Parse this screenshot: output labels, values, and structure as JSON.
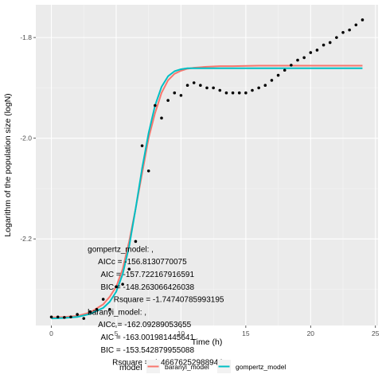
{
  "chart_data": {
    "type": "line",
    "title": "",
    "xlabel": "Time (h)",
    "ylabel": "Logarithm of the population size (logN)",
    "xlim": [
      -1.2,
      25.2
    ],
    "ylim": [
      -2.372,
      -1.735
    ],
    "x_ticks": [
      0,
      5,
      10,
      15,
      20,
      25
    ],
    "y_ticks": [
      -2.2,
      -2.0,
      -1.8
    ],
    "grid": true,
    "panel_background": "#ebebeb",
    "points": {
      "name": "observed",
      "color": "#000000",
      "x": [
        0,
        0.5,
        1,
        1.5,
        2,
        2.5,
        3,
        3.5,
        4,
        4.5,
        5,
        5.5,
        6,
        6.5,
        7,
        7.5,
        8,
        8.5,
        9,
        9.5,
        10,
        10.5,
        11,
        11.5,
        12,
        12.5,
        13,
        13.5,
        14,
        14.5,
        15,
        15.5,
        16,
        16.5,
        17,
        17.5,
        18,
        18.5,
        19,
        19.5,
        20,
        20.5,
        21,
        21.5,
        22,
        22.5,
        23,
        23.5,
        24
      ],
      "y": [
        -2.355,
        -2.355,
        -2.356,
        -2.355,
        -2.35,
        -2.358,
        -2.345,
        -2.34,
        -2.32,
        -2.34,
        -2.295,
        -2.29,
        -2.26,
        -2.205,
        -2.015,
        -2.065,
        -1.935,
        -1.96,
        -1.925,
        -1.91,
        -1.915,
        -1.895,
        -1.89,
        -1.895,
        -1.9,
        -1.9,
        -1.905,
        -1.91,
        -1.91,
        -1.91,
        -1.91,
        -1.905,
        -1.9,
        -1.895,
        -1.885,
        -1.875,
        -1.865,
        -1.855,
        -1.845,
        -1.84,
        -1.83,
        -1.825,
        -1.815,
        -1.81,
        -1.8,
        -1.79,
        -1.785,
        -1.775,
        -1.765
      ]
    },
    "series": [
      {
        "name": "baranyi_model",
        "color": "#f8766d",
        "x": [
          0,
          1,
          2,
          3,
          4,
          4.5,
          5,
          5.5,
          6,
          6.5,
          7,
          7.5,
          8,
          8.5,
          9,
          9.5,
          10,
          10.5,
          11,
          12,
          13,
          14,
          16,
          18,
          20,
          22,
          24
        ],
        "y": [
          -2.356,
          -2.355,
          -2.353,
          -2.346,
          -2.33,
          -2.315,
          -2.295,
          -2.26,
          -2.205,
          -2.14,
          -2.07,
          -2.0,
          -1.95,
          -1.91,
          -1.885,
          -1.872,
          -1.866,
          -1.862,
          -1.86,
          -1.858,
          -1.857,
          -1.857,
          -1.856,
          -1.856,
          -1.856,
          -1.856,
          -1.856
        ]
      },
      {
        "name": "gompertz_model",
        "color": "#00bfc4",
        "x": [
          0,
          1,
          2,
          3,
          4,
          4.5,
          5,
          5.5,
          6,
          6.5,
          7,
          7.5,
          8,
          8.5,
          9,
          9.5,
          10,
          10.5,
          11,
          12,
          13,
          14,
          16,
          18,
          20,
          22,
          24
        ],
        "y": [
          -2.358,
          -2.357,
          -2.355,
          -2.349,
          -2.337,
          -2.325,
          -2.305,
          -2.27,
          -2.215,
          -2.14,
          -2.06,
          -1.99,
          -1.935,
          -1.898,
          -1.877,
          -1.867,
          -1.863,
          -1.861,
          -1.861,
          -1.861,
          -1.861,
          -1.861,
          -1.861,
          -1.861,
          -1.861,
          -1.861,
          -1.861
        ]
      }
    ],
    "annotations": [
      {
        "text": "gompertz_model: ,",
        "x": 2.8,
        "y": -2.22,
        "anchor": "start"
      },
      {
        "text": "AICc = -156.8130770075",
        "x": 3.6,
        "y": -2.245,
        "anchor": "start"
      },
      {
        "text": "AIC = -157.722167916591",
        "x": 3.8,
        "y": -2.27,
        "anchor": "start"
      },
      {
        "text": "BIC = -148.263066426038",
        "x": 3.8,
        "y": -2.295,
        "anchor": "start"
      },
      {
        "text": "Rsquare = -1.74740785993195",
        "x": 4.8,
        "y": -2.32,
        "anchor": "start"
      },
      {
        "text": "baranyi_model: ,",
        "x": 2.8,
        "y": -2.345,
        "anchor": "start"
      },
      {
        "text": "AICc = -162.09289053655",
        "x": 3.6,
        "y": -2.37,
        "anchor": "start"
      },
      {
        "text": "AIC = -163.001981445641",
        "x": 3.8,
        "y": -2.395,
        "anchor": "start"
      },
      {
        "text": "BIC = -153.542879955088",
        "x": 3.8,
        "y": -2.42,
        "anchor": "start"
      },
      {
        "text": "Rsquare = -1.46676252988944",
        "x": 4.7,
        "y": -2.445,
        "anchor": "start"
      }
    ],
    "legend": {
      "title": "model",
      "position": "bottom",
      "entries": [
        {
          "label": "baranyi_model",
          "color": "#f8766d"
        },
        {
          "label": "gompertz_model",
          "color": "#00bfc4"
        }
      ]
    }
  }
}
